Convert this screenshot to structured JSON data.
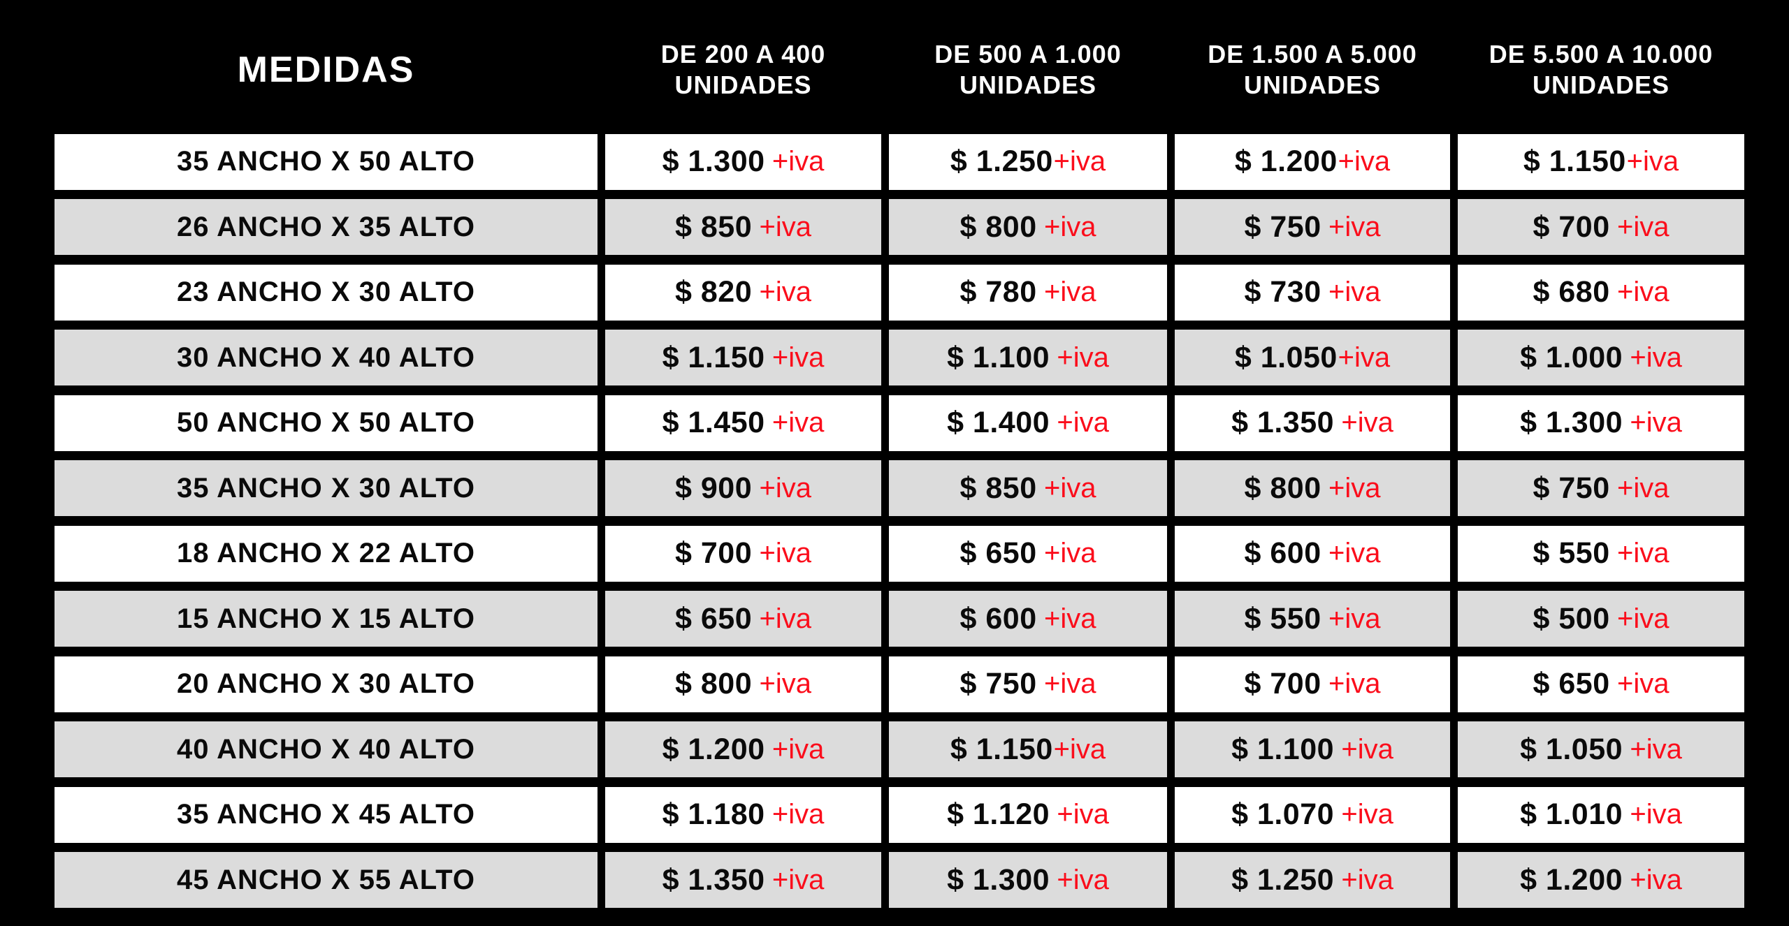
{
  "colors": {
    "background": "#000000",
    "header_text": "#ffffff",
    "row_white": "#ffffff",
    "row_alt_gray": "#dcdcdc",
    "price_text": "#0a0a0a",
    "accent_red": "#fb0d1b"
  },
  "table": {
    "header": {
      "measures_label": "MEDIDAS",
      "quantity_columns": [
        {
          "line1": "DE 200 A 400",
          "line2": "UNIDADES"
        },
        {
          "line1": "DE 500 A 1.000",
          "line2": "UNIDADES"
        },
        {
          "line1": "DE 1.500 A 5.000",
          "line2": "UNIDADES"
        },
        {
          "line1": "DE 5.500 A 10.000",
          "line2": "UNIDADES"
        }
      ]
    },
    "rows": [
      {
        "measure": "35 ANCHO X 50 ALTO",
        "prices": [
          {
            "amount": "$ 1.300",
            "vat": "+iva",
            "spaced": true
          },
          {
            "amount": "$ 1.250",
            "vat": "+iva",
            "spaced": false
          },
          {
            "amount": "$ 1.200",
            "vat": "+iva",
            "spaced": false
          },
          {
            "amount": "$ 1.150",
            "vat": "+iva",
            "spaced": false
          }
        ]
      },
      {
        "measure": "26 ANCHO X 35 ALTO",
        "prices": [
          {
            "amount": "$ 850",
            "vat": "+iva",
            "spaced": true
          },
          {
            "amount": "$ 800",
            "vat": "+iva",
            "spaced": true
          },
          {
            "amount": "$ 750",
            "vat": "+iva",
            "spaced": true
          },
          {
            "amount": "$ 700",
            "vat": "+iva",
            "spaced": true
          }
        ]
      },
      {
        "measure": "23 ANCHO X 30 ALTO",
        "prices": [
          {
            "amount": "$ 820",
            "vat": "+iva",
            "spaced": true
          },
          {
            "amount": "$ 780",
            "vat": "+iva",
            "spaced": true
          },
          {
            "amount": "$ 730",
            "vat": "+iva",
            "spaced": true
          },
          {
            "amount": "$ 680",
            "vat": "+iva",
            "spaced": true
          }
        ]
      },
      {
        "measure": "30 ANCHO X 40 ALTO",
        "prices": [
          {
            "amount": "$ 1.150",
            "vat": "+iva",
            "spaced": true
          },
          {
            "amount": "$ 1.100",
            "vat": "+iva",
            "spaced": true
          },
          {
            "amount": "$ 1.050",
            "vat": "+iva",
            "spaced": false
          },
          {
            "amount": "$ 1.000",
            "vat": "+iva",
            "spaced": true
          }
        ]
      },
      {
        "measure": "50 ANCHO X 50 ALTO",
        "prices": [
          {
            "amount": "$ 1.450",
            "vat": "+iva",
            "spaced": true
          },
          {
            "amount": "$ 1.400",
            "vat": "+iva",
            "spaced": true
          },
          {
            "amount": "$ 1.350",
            "vat": "+iva",
            "spaced": true
          },
          {
            "amount": "$ 1.300",
            "vat": "+iva",
            "spaced": true
          }
        ]
      },
      {
        "measure": "35 ANCHO X 30 ALTO",
        "prices": [
          {
            "amount": "$ 900",
            "vat": "+iva",
            "spaced": true
          },
          {
            "amount": "$ 850",
            "vat": "+iva",
            "spaced": true
          },
          {
            "amount": "$ 800",
            "vat": "+iva",
            "spaced": true
          },
          {
            "amount": "$ 750",
            "vat": "+iva",
            "spaced": true
          }
        ]
      },
      {
        "measure": "18 ANCHO X 22 ALTO",
        "prices": [
          {
            "amount": "$ 700",
            "vat": "+iva",
            "spaced": true
          },
          {
            "amount": "$ 650",
            "vat": "+iva",
            "spaced": true
          },
          {
            "amount": "$ 600",
            "vat": "+iva",
            "spaced": true
          },
          {
            "amount": "$ 550",
            "vat": "+iva",
            "spaced": true
          }
        ]
      },
      {
        "measure": "15 ANCHO X 15 ALTO",
        "prices": [
          {
            "amount": "$ 650",
            "vat": "+iva",
            "spaced": true
          },
          {
            "amount": "$ 600",
            "vat": "+iva",
            "spaced": true
          },
          {
            "amount": "$ 550",
            "vat": "+iva",
            "spaced": true
          },
          {
            "amount": "$ 500",
            "vat": "+iva",
            "spaced": true
          }
        ]
      },
      {
        "measure": "20 ANCHO X 30 ALTO",
        "prices": [
          {
            "amount": "$ 800",
            "vat": "+iva",
            "spaced": true
          },
          {
            "amount": "$ 750",
            "vat": "+iva",
            "spaced": true
          },
          {
            "amount": "$ 700",
            "vat": "+iva",
            "spaced": true
          },
          {
            "amount": "$ 650",
            "vat": "+iva",
            "spaced": true
          }
        ]
      },
      {
        "measure": "40 ANCHO X 40 ALTO",
        "prices": [
          {
            "amount": "$ 1.200",
            "vat": "+iva",
            "spaced": true
          },
          {
            "amount": "$ 1.150",
            "vat": "+iva",
            "spaced": false
          },
          {
            "amount": "$ 1.100",
            "vat": "+iva",
            "spaced": true
          },
          {
            "amount": "$ 1.050",
            "vat": "+iva",
            "spaced": true
          }
        ]
      },
      {
        "measure": "35 ANCHO X 45 ALTO",
        "prices": [
          {
            "amount": "$ 1.180",
            "vat": "+iva",
            "spaced": true
          },
          {
            "amount": "$ 1.120",
            "vat": "+iva",
            "spaced": true
          },
          {
            "amount": "$ 1.070",
            "vat": "+iva",
            "spaced": true
          },
          {
            "amount": "$ 1.010",
            "vat": "+iva",
            "spaced": true
          }
        ]
      },
      {
        "measure": "45 ANCHO X 55 ALTO",
        "prices": [
          {
            "amount": "$ 1.350",
            "vat": "+iva",
            "spaced": true
          },
          {
            "amount": "$ 1.300",
            "vat": "+iva",
            "spaced": true
          },
          {
            "amount": "$ 1.250",
            "vat": "+iva",
            "spaced": true
          },
          {
            "amount": "$ 1.200",
            "vat": "+iva",
            "spaced": true
          }
        ]
      }
    ]
  }
}
